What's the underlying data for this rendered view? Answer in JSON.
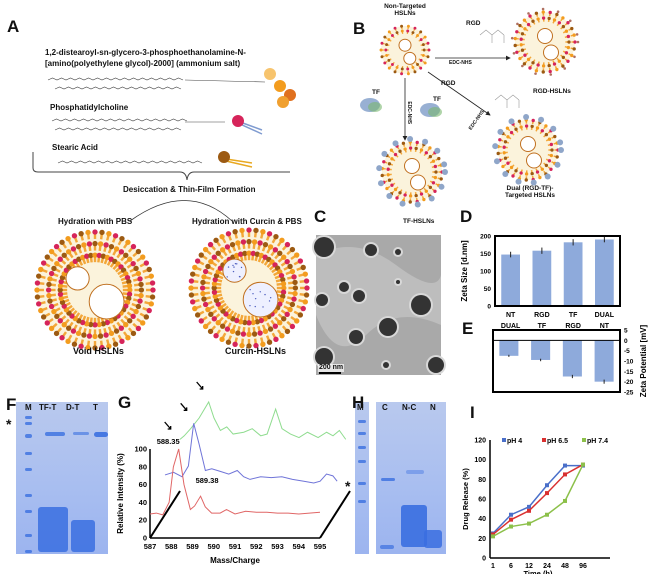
{
  "panels": {
    "A": "A",
    "B": "B",
    "C": "C",
    "D": "D",
    "E": "E",
    "F": "F",
    "G": "G",
    "H": "H",
    "I": "I"
  },
  "panel_a": {
    "dspe_name": "1,2-distearoyl-sn-glycero-3-phosphoethanolamine-N-",
    "dspe_name2": "[amino(polyethylene glycol)-2000] (ammonium salt)",
    "pc_name": "Phosphatidylcholine",
    "sa_name": "Stearic Acid",
    "process": "Desiccation & Thin-Film Formation",
    "hydration_pbs": "Hydration with PBS",
    "hydration_curcin": "Hydration with Curcin & PBS",
    "void_label": "Void HSLNs",
    "curcin_label": "Curcin-HSLNs",
    "lipid_colors": {
      "dspe": "#f39c1e",
      "pc": "#d6245a",
      "sa": "#9c5a12",
      "tail_pc": "#7f9bd0",
      "tail_sa": "#e8a820"
    }
  },
  "panel_b": {
    "non_targeted": "Non-Targeted",
    "non_targeted2": "HSLNs",
    "rgd": "RGD",
    "rgd2": "RGD",
    "edc1": "EDC-NHS",
    "edc2": "EDC-NHS",
    "edc3": "EDC-NHS",
    "tf1": "TF",
    "tf2": "TF",
    "rgd_hslns": "RGD-HSLNs",
    "tf_hslns": "TF-HSLNs",
    "dual1": "Dual (RGD-TF)-",
    "dual2": "Targeted HSLNs"
  },
  "panel_c": {
    "scale_bar": "200 nm"
  },
  "panel_f": {
    "lanes": [
      "M",
      "TF-T",
      "D-T",
      "T"
    ],
    "marker": "*"
  },
  "panel_h": {
    "lanes": [
      "M",
      "C",
      "N-C",
      "N"
    ],
    "marker": "*"
  },
  "chart_data": [
    {
      "id": "D",
      "type": "bar",
      "categories": [
        "NT",
        "RGD",
        "TF",
        "DUAL"
      ],
      "values": [
        147,
        158,
        182,
        190
      ],
      "errors": [
        8,
        9,
        9,
        8
      ],
      "ylabel": "Zeta Size [d.nm]",
      "ylim": [
        0,
        200
      ],
      "yticks": [
        0,
        50,
        100,
        150,
        200
      ],
      "color": "#8eaadb"
    },
    {
      "id": "E",
      "type": "bar",
      "categories": [
        "DUAL",
        "TF",
        "RGD",
        "NT"
      ],
      "values": [
        -7.5,
        -9.5,
        -17.5,
        -20
      ],
      "errors": [
        0.5,
        0.6,
        0.8,
        1.0
      ],
      "ylabel": "Zeta Potential [mV]",
      "ylim": [
        -25,
        5
      ],
      "yticks": [
        5,
        0,
        -5,
        -10,
        -15,
        -20,
        -25
      ],
      "color": "#8eaadb"
    },
    {
      "id": "G",
      "type": "line",
      "xlabel": "Mass/Charge",
      "ylabel": "Relative Intensity (%)",
      "xlim": [
        587,
        595
      ],
      "ylim": [
        0,
        100
      ],
      "xticks": [
        587,
        588,
        589,
        590,
        591,
        592,
        593,
        594,
        595
      ],
      "yticks": [
        0,
        20,
        40,
        60,
        80,
        100
      ],
      "annotations": [
        "588.35",
        "589.38"
      ],
      "series": [
        {
          "color": "#e06666",
          "points": [
            [
              587,
              27
            ],
            [
              587.3,
              28
            ],
            [
              587.6,
              26
            ],
            [
              587.9,
              40
            ],
            [
              588.1,
              80
            ],
            [
              588.35,
              100
            ],
            [
              588.6,
              60
            ],
            [
              588.9,
              32
            ],
            [
              589.1,
              36
            ],
            [
              589.38,
              47
            ],
            [
              589.6,
              35
            ],
            [
              589.9,
              28
            ],
            [
              590.3,
              28
            ],
            [
              590.6,
              32
            ],
            [
              591,
              27
            ],
            [
              591.5,
              30
            ],
            [
              592,
              29
            ],
            [
              592.5,
              29
            ],
            [
              593,
              28
            ],
            [
              593.5,
              28
            ],
            [
              594,
              27
            ],
            [
              594.5,
              28
            ],
            [
              595,
              29
            ]
          ]
        },
        {
          "color": "#6f74d8",
          "points": [
            [
              587,
              45
            ],
            [
              587.4,
              48
            ],
            [
              587.8,
              43
            ],
            [
              588.1,
              55
            ],
            [
              588.35,
              103
            ],
            [
              588.6,
              80
            ],
            [
              588.9,
              50
            ],
            [
              589.2,
              52
            ],
            [
              589.6,
              49
            ],
            [
              590,
              46
            ],
            [
              590.4,
              50
            ],
            [
              590.7,
              43
            ],
            [
              591,
              40
            ],
            [
              591.5,
              43
            ],
            [
              592,
              42
            ],
            [
              592.5,
              43
            ],
            [
              593,
              40
            ],
            [
              593.5,
              38
            ],
            [
              594,
              36
            ],
            [
              594.3,
              38
            ],
            [
              594.6,
              46
            ],
            [
              594.9,
              44
            ],
            [
              595.1,
              38
            ]
          ]
        },
        {
          "color": "#8fdc8f",
          "points": [
            [
              587,
              58
            ],
            [
              587.2,
              62
            ],
            [
              587.5,
              70
            ],
            [
              587.9,
              82
            ],
            [
              588.35,
              100
            ],
            [
              588.6,
              82
            ],
            [
              588.9,
              68
            ],
            [
              589.2,
              72
            ],
            [
              589.5,
              64
            ],
            [
              590,
              66
            ],
            [
              590.4,
              70
            ],
            [
              590.8,
              62
            ],
            [
              591.1,
              64
            ],
            [
              591.5,
              92
            ],
            [
              591.8,
              70
            ],
            [
              592.2,
              64
            ],
            [
              592.6,
              60
            ],
            [
              593,
              66
            ],
            [
              593.5,
              60
            ],
            [
              593.9,
              66
            ],
            [
              594.2,
              62
            ],
            [
              594.5,
              68
            ],
            [
              594.8,
              58
            ]
          ]
        }
      ]
    },
    {
      "id": "I",
      "type": "line",
      "categories": [
        "1",
        "6",
        "12",
        "24",
        "48",
        "96"
      ],
      "xlabel": "Time (h)",
      "ylabel": "Drug Release (%)",
      "ylim": [
        0,
        120
      ],
      "yticks": [
        0,
        20,
        40,
        60,
        80,
        100,
        120
      ],
      "legend": "top",
      "series": [
        {
          "name": "pH 4",
          "color": "#4a6fc9",
          "values": [
            25,
            44,
            52,
            74,
            94,
            94
          ]
        },
        {
          "name": "pH 6.5",
          "color": "#d93030",
          "values": [
            24,
            39,
            48,
            66,
            85,
            95
          ]
        },
        {
          "name": "pH 7.4",
          "color": "#8cc04a",
          "values": [
            22,
            32,
            35,
            44,
            58,
            95
          ]
        }
      ]
    }
  ]
}
